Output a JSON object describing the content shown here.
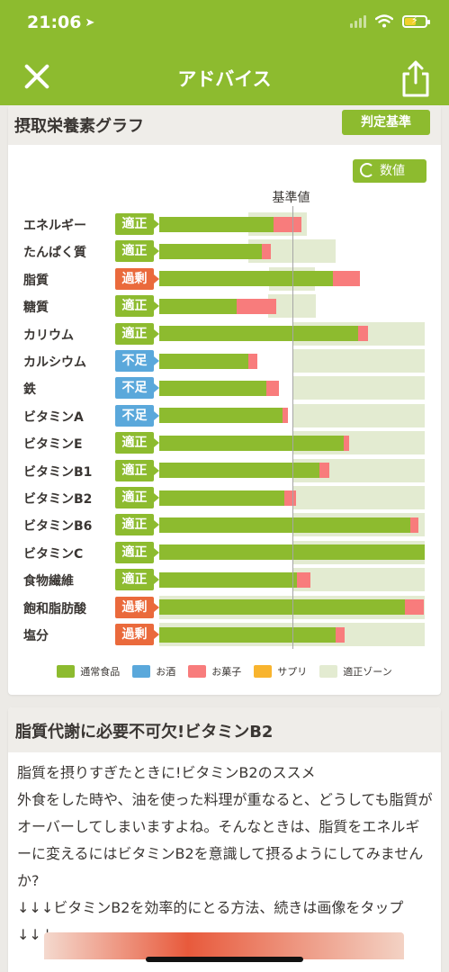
{
  "status_bar": {
    "time": "21:06"
  },
  "header": {
    "title": "アドバイス"
  },
  "chart_card": {
    "title": "摂取栄養素グラフ",
    "criteria_label": "判定基準",
    "values_label": "数値",
    "baseline_label": "基準値"
  },
  "colors": {
    "brand": "#8dbb2f",
    "normal_food": "#8dbb2f",
    "alcohol": "#5aa8db",
    "snacks": "#f87c7c",
    "supplement": "#f8b42e",
    "zone": "#e3ebd1",
    "status_ok": "#8dbb2f",
    "status_excess": "#ea6a3c",
    "status_deficient": "#5aa8db"
  },
  "chart_data": {
    "type": "bar",
    "orientation": "horizontal",
    "stacked": true,
    "unit_note": "percent of reference value (基準値 = 100)",
    "categories": [
      "エネルギー",
      "たんぱく質",
      "脂質",
      "糖質",
      "カリウム",
      "カルシウム",
      "鉄",
      "ビタミンA",
      "ビタミンE",
      "ビタミンB1",
      "ビタミンB2",
      "ビタミンB6",
      "ビタミンC",
      "食物繊維",
      "飽和脂肪酸",
      "塩分"
    ],
    "status": [
      "適正",
      "適正",
      "過剰",
      "適正",
      "適正",
      "不足",
      "不足",
      "不足",
      "適正",
      "適正",
      "適正",
      "適正",
      "適正",
      "適正",
      "過剰",
      "過剰"
    ],
    "series": [
      {
        "name": "通常食品",
        "values": [
          86,
          77,
          131,
          58,
          150,
          67,
          81,
          93,
          139,
          121,
          94,
          189,
          200,
          104,
          185,
          133
        ]
      },
      {
        "name": "お酒",
        "values": [
          0,
          0,
          0,
          0,
          0,
          0,
          0,
          0,
          0,
          0,
          0,
          0,
          0,
          0,
          0,
          0
        ]
      },
      {
        "name": "お菓子",
        "values": [
          21,
          7,
          20,
          30,
          7,
          7,
          9,
          4,
          4,
          7,
          9,
          6,
          0,
          10,
          14,
          7
        ]
      },
      {
        "name": "サプリ",
        "values": [
          0,
          0,
          0,
          0,
          0,
          0,
          0,
          0,
          0,
          0,
          0,
          0,
          0,
          0,
          0,
          0
        ]
      }
    ],
    "zones": [
      [
        67,
        111
      ],
      [
        67,
        133
      ],
      [
        83,
        117
      ],
      [
        82,
        118
      ],
      [
        100,
        200
      ],
      [
        100,
        200
      ],
      [
        100,
        200
      ],
      [
        100,
        200
      ],
      [
        100,
        200
      ],
      [
        100,
        200
      ],
      [
        100,
        200
      ],
      [
        100,
        200
      ],
      [
        100,
        200
      ],
      [
        100,
        200
      ],
      [
        0,
        200
      ],
      [
        0,
        200
      ]
    ],
    "xlim": [
      0,
      200
    ],
    "legend": [
      "通常食品",
      "お酒",
      "お菓子",
      "サプリ",
      "適正ゾーン"
    ],
    "legend_placement": "bottom"
  },
  "article": {
    "title": "脂質代謝に必要不可欠!ビタミンB2",
    "body": "脂質を摂りすぎたときに!ビタミンB2のススメ\n外食をした時や、油を使った料理が重なると、どうしても脂質がオーバーしてしまいますよね。そんなときは、脂質をエネルギーに変えるにはビタミンB2を意識して摂るようにしてみませんか?\n↓↓↓ビタミンB2を効率的にとる方法、続きは画像をタップ↓↓↓"
  }
}
